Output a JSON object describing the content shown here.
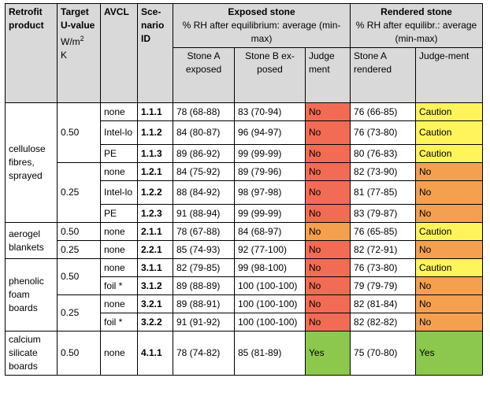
{
  "headers": {
    "retrofit": "Retrofit product",
    "target": "Target U-value",
    "unit": "W/m",
    "unit_sup": "2",
    "unit_k": "K",
    "avcl": "AVCL",
    "scenario": "Sce-nario ID",
    "exposed": "Exposed stone",
    "exposed_sub": "% RH after equilibrium: average (min-max)",
    "rendered": "Rendered stone",
    "rendered_sub": "% RH after equilibr.: average (min-max)",
    "stone_a_exposed": "Stone A exposed",
    "stone_b_exposed": "Stone B ex-posed",
    "judgement": "Judge ment",
    "stone_a_rendered": "Stone A rendered",
    "judgement2": "Judge-ment"
  },
  "colors": {
    "header_bg": "#d9d9d9",
    "no_red": "#f26b55",
    "no_orange": "#f4a04f",
    "caution": "#fff45b",
    "yes": "#8cc84d"
  },
  "groups": {
    "cellulose": "cellulose fibres, sprayed",
    "aerogel": "aerogel blankets",
    "phenolic": "phenolic foam boards",
    "calcium": "calcium silicate boards"
  },
  "targets": {
    "t050a": "0.50",
    "t025a": "0.25",
    "t050b": "0.50",
    "t025b": "0.25",
    "t050c": "0.50",
    "t025c": "0.25",
    "t050d": "0.50"
  },
  "rows": [
    {
      "avcl": "none",
      "id": "1.1.1",
      "a": "78 (68-88)",
      "b": "83 (70-94)",
      "j1": "No",
      "j1c": "red",
      "r": "76 (66-85)",
      "j2": "Caution",
      "j2c": "yellow"
    },
    {
      "avcl": "Intel-lo",
      "id": "1.1.2",
      "a": "84 (80-87)",
      "b": "96 (94-97)",
      "j1": "No",
      "j1c": "red",
      "r": "76 (73-80)",
      "j2": "Caution",
      "j2c": "yellow"
    },
    {
      "avcl": "PE",
      "id": "1.1.3",
      "a": "89 (86-92)",
      "b": "99 (99-99)",
      "j1": "No",
      "j1c": "red",
      "r": "80 (76-83)",
      "j2": "Caution",
      "j2c": "yellow"
    },
    {
      "avcl": "none",
      "id": "1.2.1",
      "a": "84 (75-92)",
      "b": "89 (79-96)",
      "j1": "No",
      "j1c": "red",
      "r": "82 (73-90)",
      "j2": "No",
      "j2c": "orange"
    },
    {
      "avcl": "Intel-lo",
      "id": "1.2.2",
      "a": "88 (84-92)",
      "b": "98 (97-98)",
      "j1": "No",
      "j1c": "red",
      "r": "81 (77-85)",
      "j2": "No",
      "j2c": "orange"
    },
    {
      "avcl": "PE",
      "id": "1.2.3",
      "a": "91 (88-94)",
      "b": "99 (99-99)",
      "j1": "No",
      "j1c": "red",
      "r": "83 (79-87)",
      "j2": "No",
      "j2c": "orange"
    },
    {
      "avcl": "none",
      "id": "2.1.1",
      "a": "78 (67-88)",
      "b": "84 (68-97)",
      "j1": "No",
      "j1c": "orange",
      "r": "76 (65-85)",
      "j2": "Caution",
      "j2c": "yellow"
    },
    {
      "avcl": "none",
      "id": "2.2.1",
      "a": "85 (74-93)",
      "b": "92 (77-100)",
      "j1": "No",
      "j1c": "red",
      "r": "82 (72-91)",
      "j2": "No",
      "j2c": "orange"
    },
    {
      "avcl": "none",
      "id": "3.1.1",
      "a": "82 (79-85)",
      "b": "99 (98-100)",
      "j1": "No",
      "j1c": "red",
      "r": "76 (73-80)",
      "j2": "Caution",
      "j2c": "yellow"
    },
    {
      "avcl": "foil *",
      "id": "3.1.2",
      "a": "89 (88-89)",
      "b": "100 (100-100)",
      "j1": "No",
      "j1c": "red",
      "r": "79 (79-79)",
      "j2": "No",
      "j2c": "orange"
    },
    {
      "avcl": "none",
      "id": "3.2.1",
      "a": "89 (88-91)",
      "b": "100 (100-100)",
      "j1": "No",
      "j1c": "red",
      "r": "82 (81-84)",
      "j2": "No",
      "j2c": "orange"
    },
    {
      "avcl": "foil *",
      "id": "3.2.2",
      "a": "91 (91-92)",
      "b": "100 (100-100)",
      "j1": "No",
      "j1c": "red",
      "r": "82 (82-82)",
      "j2": "No",
      "j2c": "orange"
    },
    {
      "avcl": "none",
      "id": "4.1.1",
      "a": "78 (74-82)",
      "b": "85 (81-89)",
      "j1": "Yes",
      "j1c": "green",
      "r": "75 (70-80)",
      "j2": "Yes",
      "j2c": "green"
    }
  ]
}
